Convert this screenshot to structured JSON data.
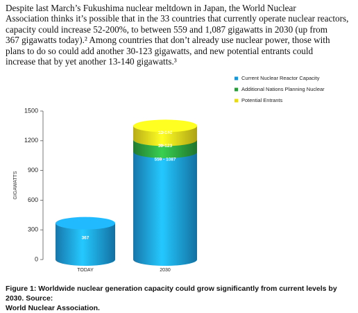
{
  "paragraph": [
    "Despite last March’s Fukushima nuclear meltdown in Japan, the World Nuclear",
    "Association thinks it’s possible that in the 33 countries that currently operate nuclear reactors,",
    "capacity could increase 52-200%, to between 559 and 1,087 gigawatts in 2030 (up from",
    "367 gigawatts today).² Among countries that don’t already use nuclear power, those with",
    "plans to do so could add another 30-123 gigawatts, and new potential entrants could",
    "increase that by yet another 13-140 gigawatts.³"
  ],
  "chart_data": {
    "type": "stacked-cylinder",
    "y_label": "GIGAWATTS",
    "categories": [
      "TODAY",
      "2030"
    ],
    "series": [
      {
        "name": "Current Nuclear Reactor Capacity",
        "color": "#1b95d6",
        "values": [
          367,
          1087
        ],
        "value_labels": [
          "367",
          "559 - 1087"
        ]
      },
      {
        "name": "Additional Nations Planning Nuclear",
        "color": "#2a9a3c",
        "values": [
          null,
          123
        ],
        "value_labels": [
          null,
          "30-123"
        ]
      },
      {
        "name": "Potential Entrants",
        "color": "#e6d81a",
        "values": [
          null,
          140
        ],
        "value_labels": [
          null,
          "13-140"
        ]
      }
    ],
    "ylim": [
      0,
      1500
    ],
    "yticks": [
      0,
      300,
      600,
      900,
      1200,
      1500
    ],
    "legend": "top-right"
  },
  "caption": [
    "Figure 1: Worldwide nuclear generation capacity could grow significantly from current levels by 2030. Source:",
    "World Nuclear Association."
  ]
}
